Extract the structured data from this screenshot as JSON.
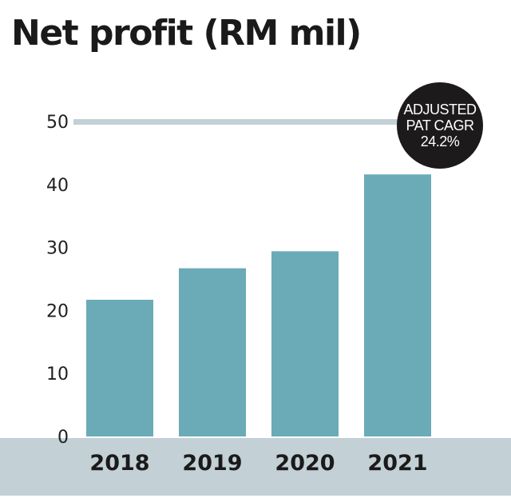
{
  "chart_data": {
    "type": "bar",
    "title": "Net profit (RM mil)",
    "categories": [
      "2018",
      "2019",
      "2020",
      "2021"
    ],
    "values": [
      21.7,
      26.7,
      29.4,
      41.6
    ],
    "ylim": [
      0,
      50
    ],
    "yticks": [
      "0",
      "10",
      "20",
      "30",
      "40",
      "50"
    ],
    "grid": false,
    "annotation": {
      "lines": [
        "ADJUSTED",
        "PAT CAGR",
        "24.2%"
      ]
    }
  },
  "colors": {
    "bar": "#6aabb7",
    "reference_line": "#c3d0d6",
    "axis_band": "#c3d0d6",
    "badge": "#1c1a1a"
  }
}
